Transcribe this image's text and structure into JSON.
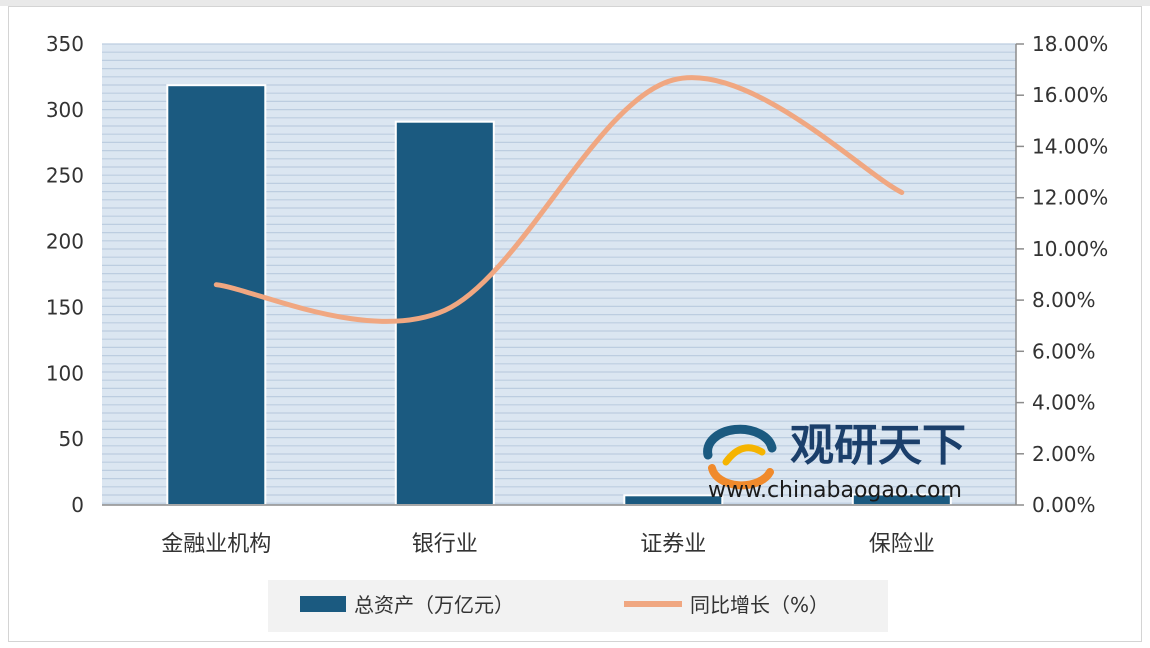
{
  "chart_data": {
    "type": "bar",
    "categories": [
      "金融业机构",
      "银行业",
      "证券业",
      "保险业"
    ],
    "series": [
      {
        "name": "总资产（万亿元）",
        "type": "bar",
        "axis": "left",
        "values": [
          318.7,
          291.0,
          7.4,
          8.0
        ],
        "color": "#1b5a80"
      },
      {
        "name": "同比增长（%）",
        "type": "line",
        "axis": "right",
        "values": [
          8.6,
          7.6,
          16.6,
          12.2
        ],
        "color": "#f0a781"
      }
    ],
    "y_left": {
      "ylim": [
        0,
        350
      ],
      "ticks": [
        "0",
        "50",
        "100",
        "150",
        "200",
        "250",
        "300",
        "350"
      ]
    },
    "y_right": {
      "ylim": [
        0,
        18
      ],
      "ticks": [
        "0.00%",
        "2.00%",
        "4.00%",
        "6.00%",
        "8.00%",
        "10.00%",
        "12.00%",
        "14.00%",
        "16.00%",
        "18.00%"
      ]
    },
    "grid": true,
    "legend": "bottom-center",
    "plot_background": "#dbe6f1",
    "gridline_color": "#bccde0"
  },
  "watermark": {
    "name": "观研天下",
    "url": "www.chinabaogao.com"
  }
}
